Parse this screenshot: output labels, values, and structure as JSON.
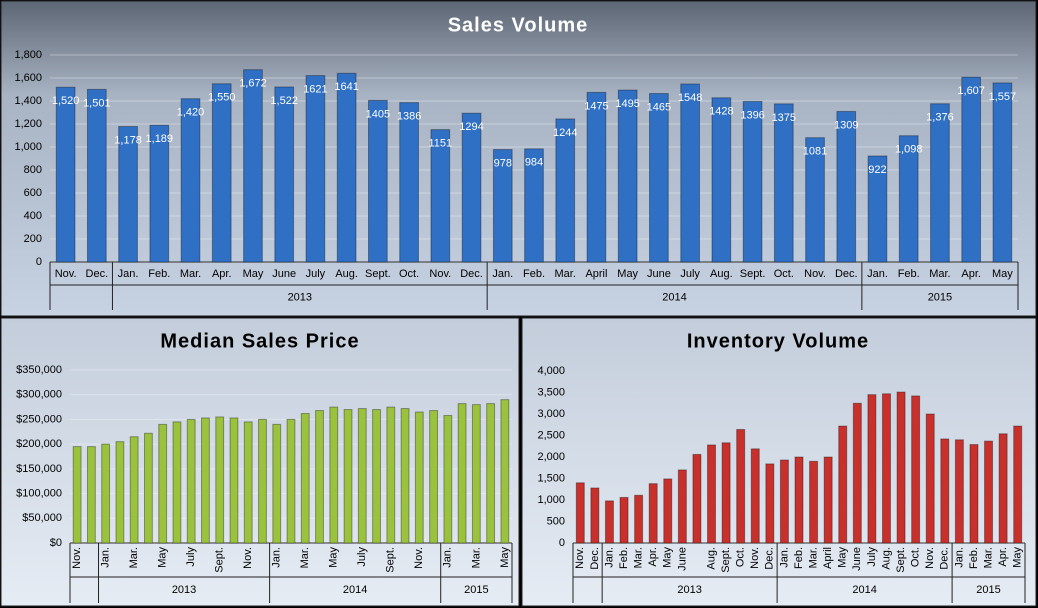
{
  "chart_data": [
    {
      "type": "bar",
      "title": "Sales Volume",
      "categories": [
        "Nov.",
        "Dec.",
        "Jan.",
        "Feb.",
        "Mar.",
        "Apr.",
        "May",
        "June",
        "July",
        "Aug.",
        "Sept.",
        "Oct.",
        "Nov.",
        "Dec.",
        "Jan.",
        "Feb.",
        "Mar.",
        "April",
        "May",
        "June",
        "July",
        "Aug.",
        "Sept.",
        "Oct.",
        "Nov.",
        "Dec.",
        "Jan.",
        "Feb.",
        "Mar.",
        "Apr.",
        "May"
      ],
      "groups": [
        null,
        null,
        "2013",
        "2013",
        "2013",
        "2013",
        "2013",
        "2013",
        "2013",
        "2013",
        "2013",
        "2013",
        "2013",
        "2013",
        "2014",
        "2014",
        "2014",
        "2014",
        "2014",
        "2014",
        "2014",
        "2014",
        "2014",
        "2014",
        "2014",
        "2014",
        "2015",
        "2015",
        "2015",
        "2015",
        "2015"
      ],
      "values": [
        1520,
        1501,
        1178,
        1189,
        1420,
        1550,
        1672,
        1522,
        1621,
        1641,
        1405,
        1386,
        1151,
        1294,
        978,
        984,
        1244,
        1475,
        1495,
        1465,
        1548,
        1428,
        1396,
        1375,
        1081,
        1309,
        922,
        1098,
        1376,
        1607,
        1557
      ],
      "value_labels": [
        "1,520",
        "1,501",
        "1,178",
        "1,189",
        "1,420",
        "1,550",
        "1,672",
        "1,522",
        "1621",
        "1641",
        "1405",
        "1386",
        "1151",
        "1294",
        "978",
        "984",
        "1244",
        "1475",
        "1495",
        "1465",
        "1548",
        "1428",
        "1396",
        "1375",
        "1081",
        "1309",
        "922",
        "1,098",
        "1,376",
        "1,607",
        "1,557"
      ],
      "color": "#2f6fc4",
      "ylim": [
        0,
        1800
      ],
      "yticks": [
        0,
        200,
        400,
        600,
        800,
        {
          "value": 1000,
          "label": "1,000"
        },
        {
          "value": 1200,
          "label": "1,200"
        },
        {
          "value": 1400,
          "label": "1,400"
        },
        {
          "value": 1600,
          "label": "1,600"
        },
        {
          "value": 1800,
          "label": "1,800"
        }
      ],
      "grid": true
    },
    {
      "type": "bar",
      "title": "Median Sales Price",
      "categories": [
        "Nov.",
        null,
        "Jan.",
        null,
        "Mar.",
        null,
        "May",
        null,
        "July",
        null,
        "Sept.",
        null,
        "Nov.",
        null,
        "Jan.",
        null,
        "Mar.",
        null,
        "May",
        null,
        "July",
        null,
        "Sept.",
        null,
        "Nov.",
        null,
        "Jan.",
        null,
        "Mar.",
        null,
        "May"
      ],
      "groups": [
        null,
        null,
        "2013",
        "2013",
        "2013",
        "2013",
        "2013",
        "2013",
        "2013",
        "2013",
        "2013",
        "2013",
        "2013",
        "2013",
        "2014",
        "2014",
        "2014",
        "2014",
        "2014",
        "2014",
        "2014",
        "2014",
        "2014",
        "2014",
        "2014",
        "2014",
        "2015",
        "2015",
        "2015",
        "2015",
        "2015"
      ],
      "values": [
        195000,
        195000,
        200000,
        205000,
        215000,
        222000,
        240000,
        245000,
        250000,
        253000,
        255000,
        253000,
        245000,
        250000,
        240000,
        250000,
        262000,
        268000,
        275000,
        270000,
        272000,
        270000,
        275000,
        272000,
        265000,
        268000,
        258000,
        282000,
        280000,
        282000,
        290000
      ],
      "color": "#9ac23c",
      "ylim": [
        0,
        350000
      ],
      "yticks": [
        {
          "value": 0,
          "label": "$0"
        },
        {
          "value": 50000,
          "label": "$50,000"
        },
        {
          "value": 100000,
          "label": "$100,000"
        },
        {
          "value": 150000,
          "label": "$150,000"
        },
        {
          "value": 200000,
          "label": "$200,000"
        },
        {
          "value": 250000,
          "label": "$250,000"
        },
        {
          "value": 300000,
          "label": "$300,000"
        },
        {
          "value": 350000,
          "label": "$350,000"
        }
      ],
      "grid": true
    },
    {
      "type": "bar",
      "title": "Inventory Volume",
      "categories": [
        "Nov.",
        "Dec.",
        "Jan.",
        "Feb.",
        "Mar.",
        "Apr.",
        "May",
        "June",
        null,
        "Aug.",
        "Sept.",
        "Oct.",
        "Nov.",
        "Dec.",
        "Jan.",
        "Feb.",
        "Mar.",
        "April",
        "May",
        "June",
        "July",
        "Aug.",
        "Sept.",
        "Oct.",
        "Nov.",
        "Dec.",
        "Jan.",
        "Feb.",
        "Mar.",
        "Apr.",
        "May"
      ],
      "groups": [
        null,
        null,
        "2013",
        "2013",
        "2013",
        "2013",
        "2013",
        "2013",
        "2013",
        "2013",
        "2013",
        "2013",
        "2013",
        "2013",
        "2014",
        "2014",
        "2014",
        "2014",
        "2014",
        "2014",
        "2014",
        "2014",
        "2014",
        "2014",
        "2014",
        "2014",
        "2015",
        "2015",
        "2015",
        "2015",
        "2015"
      ],
      "values": [
        1400,
        1280,
        980,
        1060,
        1110,
        1380,
        1490,
        1700,
        2060,
        2280,
        2330,
        2640,
        2190,
        1840,
        1930,
        2000,
        1900,
        2000,
        2720,
        3250,
        3450,
        3470,
        3510,
        3420,
        3000,
        2420,
        2400,
        2290,
        2370,
        2540,
        2720
      ],
      "color": "#c8302c",
      "ylim": [
        0,
        4000
      ],
      "yticks": [
        0,
        500,
        {
          "value": 1000,
          "label": "1,000"
        },
        {
          "value": 1500,
          "label": "1,500"
        },
        {
          "value": 2000,
          "label": "2,000"
        },
        {
          "value": 2500,
          "label": "2,500"
        },
        {
          "value": 3000,
          "label": "3,000"
        },
        {
          "value": 3500,
          "label": "3,500"
        },
        {
          "value": 4000,
          "label": "4,000"
        }
      ],
      "grid": false
    }
  ]
}
